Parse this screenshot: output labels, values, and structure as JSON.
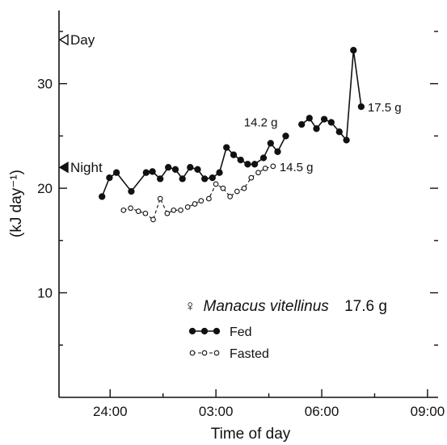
{
  "chart_data": {
    "type": "line",
    "xlabel": "Time of day",
    "ylabel": "(kJ day⁻¹)",
    "xlim": [
      22.55,
      33.3
    ],
    "ylim": [
      0,
      37
    ],
    "x_ticks": [
      {
        "value": 24,
        "label": "24:00"
      },
      {
        "value": 27,
        "label": "03:00"
      },
      {
        "value": 30,
        "label": "06:00"
      },
      {
        "value": 33,
        "label": "09:00"
      }
    ],
    "x_minor_ticks": [
      25.5,
      28.5,
      31.5
    ],
    "y_ticks": [
      {
        "value": 10,
        "label": "10"
      },
      {
        "value": 20,
        "label": "20"
      },
      {
        "value": 30,
        "label": "30"
      }
    ],
    "y_minor_ticks": [
      5,
      15,
      25,
      35
    ],
    "markers": [
      {
        "label": "Day",
        "value": 34.2,
        "style": "open"
      },
      {
        "label": "Night",
        "value": 22.0,
        "style": "filled"
      }
    ],
    "species_label": {
      "symbol": "♀",
      "name": "Manacus vitellinus",
      "mass": "17.6 g"
    },
    "series": [
      {
        "name": "Fed",
        "marker": "filled",
        "line": "solid",
        "segments": [
          [
            [
              23.77,
              19.2
            ],
            [
              23.98,
              21.0
            ],
            [
              24.18,
              21.5
            ],
            [
              24.6,
              19.7
            ],
            [
              25.02,
              21.5
            ],
            [
              25.2,
              21.6
            ],
            [
              25.42,
              20.9
            ],
            [
              25.65,
              22.0
            ],
            [
              25.85,
              21.8
            ],
            [
              26.05,
              20.9
            ],
            [
              26.27,
              22.0
            ],
            [
              26.48,
              21.8
            ],
            [
              26.68,
              20.9
            ],
            [
              26.9,
              21.0
            ],
            [
              27.1,
              21.5
            ],
            [
              27.3,
              23.9
            ],
            [
              27.5,
              23.2
            ],
            [
              27.7,
              22.7
            ],
            [
              27.9,
              22.3
            ],
            [
              28.1,
              22.3
            ],
            [
              28.35,
              22.9
            ],
            [
              28.55,
              24.3
            ],
            [
              28.75,
              23.5
            ],
            [
              28.98,
              25.0
            ]
          ],
          [
            [
              29.43,
              26.1
            ],
            [
              29.65,
              26.7
            ],
            [
              29.85,
              25.7
            ],
            [
              30.07,
              26.6
            ],
            [
              30.27,
              26.3
            ],
            [
              30.5,
              25.4
            ],
            [
              30.7,
              24.6
            ],
            [
              30.9,
              33.2
            ],
            [
              31.12,
              27.8
            ]
          ]
        ]
      },
      {
        "name": "Fasted",
        "marker": "open",
        "line": "dashed",
        "segments": [
          [
            [
              24.38,
              17.9
            ],
            [
              24.58,
              18.1
            ],
            [
              24.8,
              17.8
            ],
            [
              25.0,
              17.6
            ],
            [
              25.22,
              17.0
            ],
            [
              25.42,
              19.0
            ],
            [
              25.62,
              17.6
            ],
            [
              25.8,
              17.9
            ],
            [
              26.0,
              17.9
            ],
            [
              26.2,
              18.2
            ],
            [
              26.4,
              18.5
            ],
            [
              26.58,
              18.8
            ],
            [
              26.8,
              19.0
            ],
            [
              27.0,
              20.4
            ],
            [
              27.2,
              20.0
            ],
            [
              27.4,
              19.2
            ],
            [
              27.6,
              19.7
            ],
            [
              27.8,
              20.0
            ],
            [
              28.0,
              21.0
            ],
            [
              28.2,
              21.5
            ],
            [
              28.4,
              21.9
            ],
            [
              28.62,
              22.1
            ]
          ]
        ]
      }
    ],
    "annotations": [
      {
        "text": "14.2 g",
        "x": 28.98,
        "y": 25.0,
        "anchor": "end"
      },
      {
        "text": "14.5 g",
        "x": 28.62,
        "y": 22.1,
        "anchor": "start"
      },
      {
        "text": "17.5 g",
        "x": 31.12,
        "y": 27.8,
        "anchor": "start"
      }
    ]
  }
}
